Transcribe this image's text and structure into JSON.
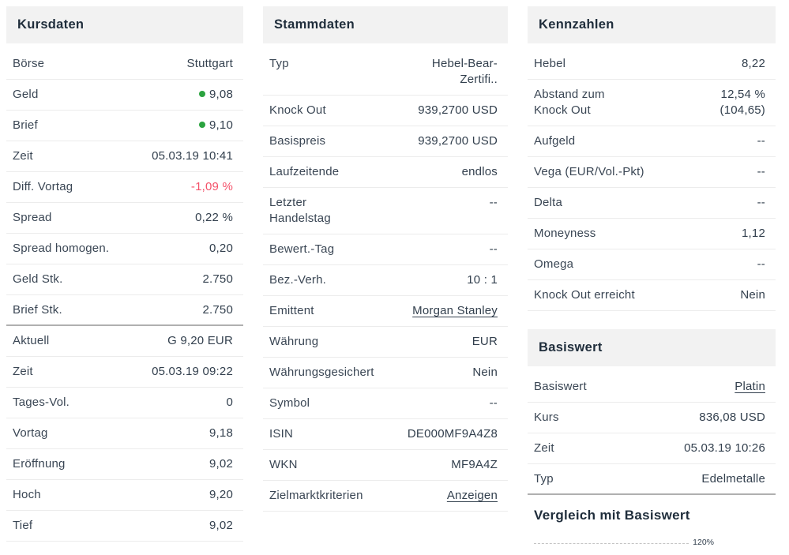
{
  "colors": {
    "header_bg": "#f2f2f2",
    "text": "#33404e",
    "positive_dot_green": "#2ba33f",
    "negative_red": "#f4526a",
    "thick_divider": "#b0b0b0"
  },
  "kursdaten": {
    "title": "Kursdaten",
    "rows": [
      {
        "label": "Börse",
        "value": "Stuttgart"
      },
      {
        "label": "Geld",
        "value": "9,08"
      },
      {
        "label": "Brief",
        "value": "9,10"
      },
      {
        "label": "Zeit",
        "value": "05.03.19 10:41"
      },
      {
        "label": "Diff. Vortag",
        "value": "-1,09 %"
      },
      {
        "label": "Spread",
        "value": "0,22 %"
      },
      {
        "label": "Spread homogen.",
        "value": "0,20"
      },
      {
        "label": "Geld Stk.",
        "value": "2.750"
      },
      {
        "label": "Brief Stk.",
        "value": "2.750"
      },
      {
        "label": "Aktuell",
        "value": "G 9,20 EUR"
      },
      {
        "label": "Zeit",
        "value": "05.03.19 09:22"
      },
      {
        "label": "Tages-Vol.",
        "value": "0"
      },
      {
        "label": "Vortag",
        "value": "9,18"
      },
      {
        "label": "Eröffnung",
        "value": "9,02"
      },
      {
        "label": "Hoch",
        "value": "9,20"
      },
      {
        "label": "Tief",
        "value": "9,02"
      }
    ]
  },
  "stammdaten": {
    "title": "Stammdaten",
    "rows": [
      {
        "label": "Typ",
        "value": "Hebel-Bear-\nZertifi.."
      },
      {
        "label": "Knock Out",
        "value": "939,2700 USD"
      },
      {
        "label": "Basispreis",
        "value": "939,2700 USD"
      },
      {
        "label": "Laufzeitende",
        "value": "endlos"
      },
      {
        "label": "Letzter\nHandelstag",
        "value": "--"
      },
      {
        "label": "Bewert.-Tag",
        "value": "--"
      },
      {
        "label": "Bez.-Verh.",
        "value": "10 : 1"
      },
      {
        "label": "Emittent",
        "value": "Morgan Stanley"
      },
      {
        "label": "Währung",
        "value": "EUR"
      },
      {
        "label": "Währungsgesichert",
        "value": "Nein"
      },
      {
        "label": "Symbol",
        "value": "--"
      },
      {
        "label": "ISIN",
        "value": "DE000MF9A4Z8"
      },
      {
        "label": "WKN",
        "value": "MF9A4Z"
      },
      {
        "label": "Zielmarktkriterien",
        "value": "Anzeigen"
      }
    ]
  },
  "kennzahlen": {
    "title": "Kennzahlen",
    "rows": [
      {
        "label": "Hebel",
        "value": "8,22"
      },
      {
        "label": "Abstand zum\nKnock Out",
        "value": "12,54 %\n(104,65)"
      },
      {
        "label": "Aufgeld",
        "value": "--"
      },
      {
        "label": "Vega (EUR/Vol.-Pkt)",
        "value": "--"
      },
      {
        "label": "Delta",
        "value": "--"
      },
      {
        "label": "Moneyness",
        "value": "1,12"
      },
      {
        "label": "Omega",
        "value": "--"
      },
      {
        "label": "Knock Out erreicht",
        "value": "Nein"
      }
    ]
  },
  "basiswert": {
    "title": "Basiswert",
    "rows": [
      {
        "label": "Basiswert",
        "value": "Platin"
      },
      {
        "label": "Kurs",
        "value": "836,08 USD"
      },
      {
        "label": "Zeit",
        "value": "05.03.19 10:26"
      },
      {
        "label": "Typ",
        "value": "Edelmetalle"
      }
    ]
  },
  "vergleich": {
    "title": "Vergleich mit Basiswert",
    "chart_top_tick_label": "120%"
  }
}
